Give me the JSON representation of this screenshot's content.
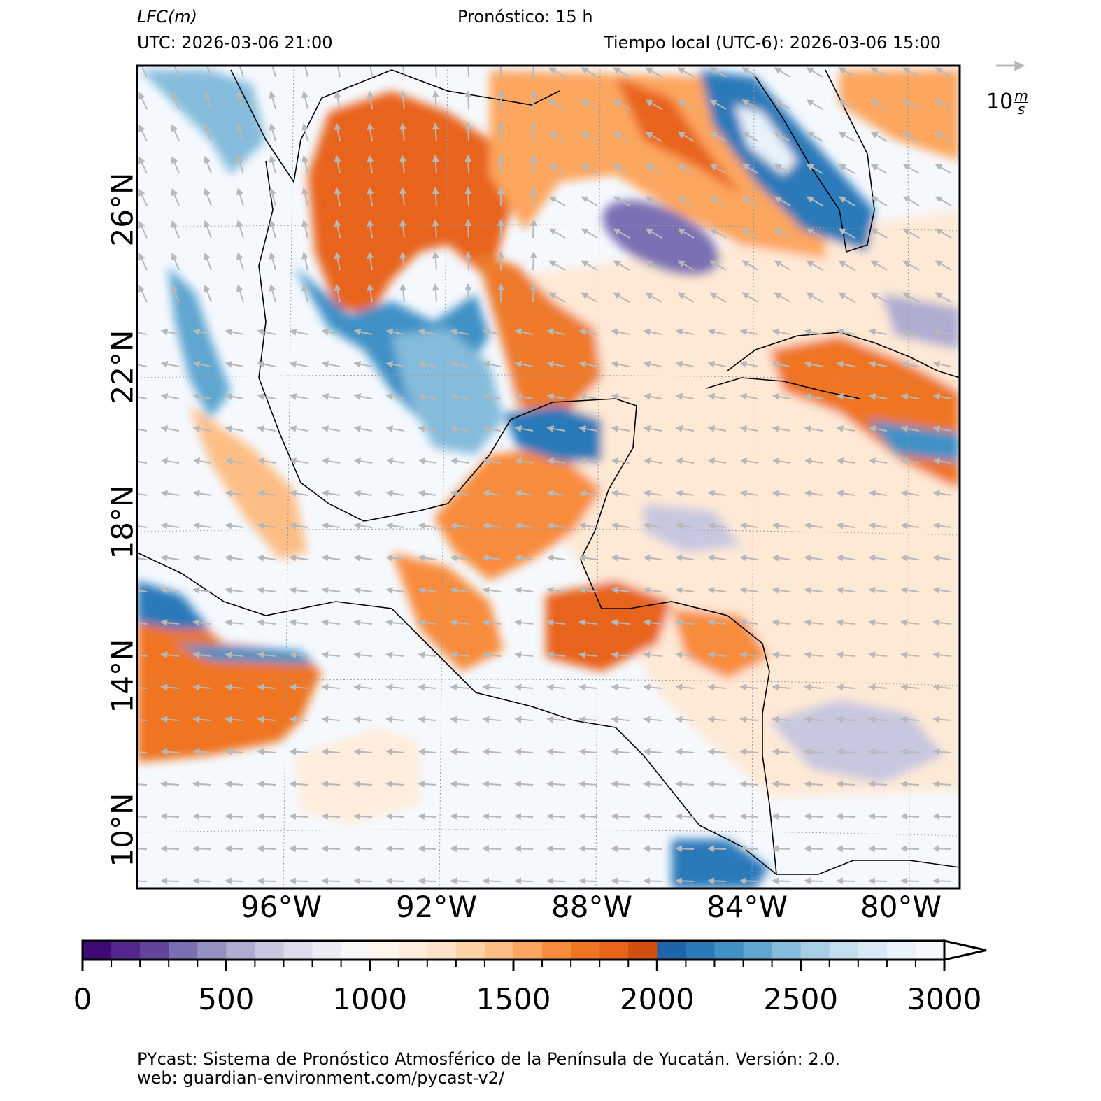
{
  "header": {
    "variable_label": "LFC",
    "variable_unit": "(m)",
    "forecast_label": "Pronóstico: 15 h",
    "utc_label": "UTC:  2026-03-06 21:00",
    "local_time_label": "Tiempo local (UTC-6): 2026-03-06 15:00"
  },
  "wind_key": {
    "value": "10",
    "unit_num": "m",
    "unit_den": "s"
  },
  "map": {
    "lon_labels": [
      "96°W",
      "92°W",
      "88°W",
      "84°W",
      "80°W"
    ],
    "lat_labels": [
      "26°N",
      "22°N",
      "18°N",
      "14°N",
      "10°N"
    ],
    "colors": {
      "low_purple": "#3f0a74",
      "white": "#f7fbff",
      "orange": "#e8641b",
      "blue": "#1f6eb1",
      "coast": "#000000",
      "wind_arrow": "#b8b8b8"
    }
  },
  "colorbar": {
    "min": 0,
    "max": 3000,
    "tick_labels": [
      "0",
      "500",
      "1000",
      "1500",
      "2000",
      "2500",
      "3000"
    ],
    "bins": [
      "#3f0a74",
      "#54278f",
      "#63449c",
      "#7a6fb3",
      "#9390c2",
      "#aeacd1",
      "#c8c7e0",
      "#dcdbec",
      "#ecebf4",
      "#f7f7fa",
      "#fff5eb",
      "#feeddc",
      "#fee3c9",
      "#fdd2a6",
      "#fdbe85",
      "#fda65f",
      "#f88c3d",
      "#ef7423",
      "#e8641b",
      "#d24f0f",
      "#1f63a8",
      "#2a79b9",
      "#4191c6",
      "#5fa6d1",
      "#85bcdb",
      "#a7cee4",
      "#c3dcee",
      "#d8e8f5",
      "#e9f2fa",
      "#f5f9fe"
    ]
  },
  "footer": {
    "line1": "PYcast: Sistema de Pronóstico Atmosférico de la Península de Yucatán. Versión: 2.0.",
    "line2": "web: guardian-environment.com/pycast-v2/"
  }
}
